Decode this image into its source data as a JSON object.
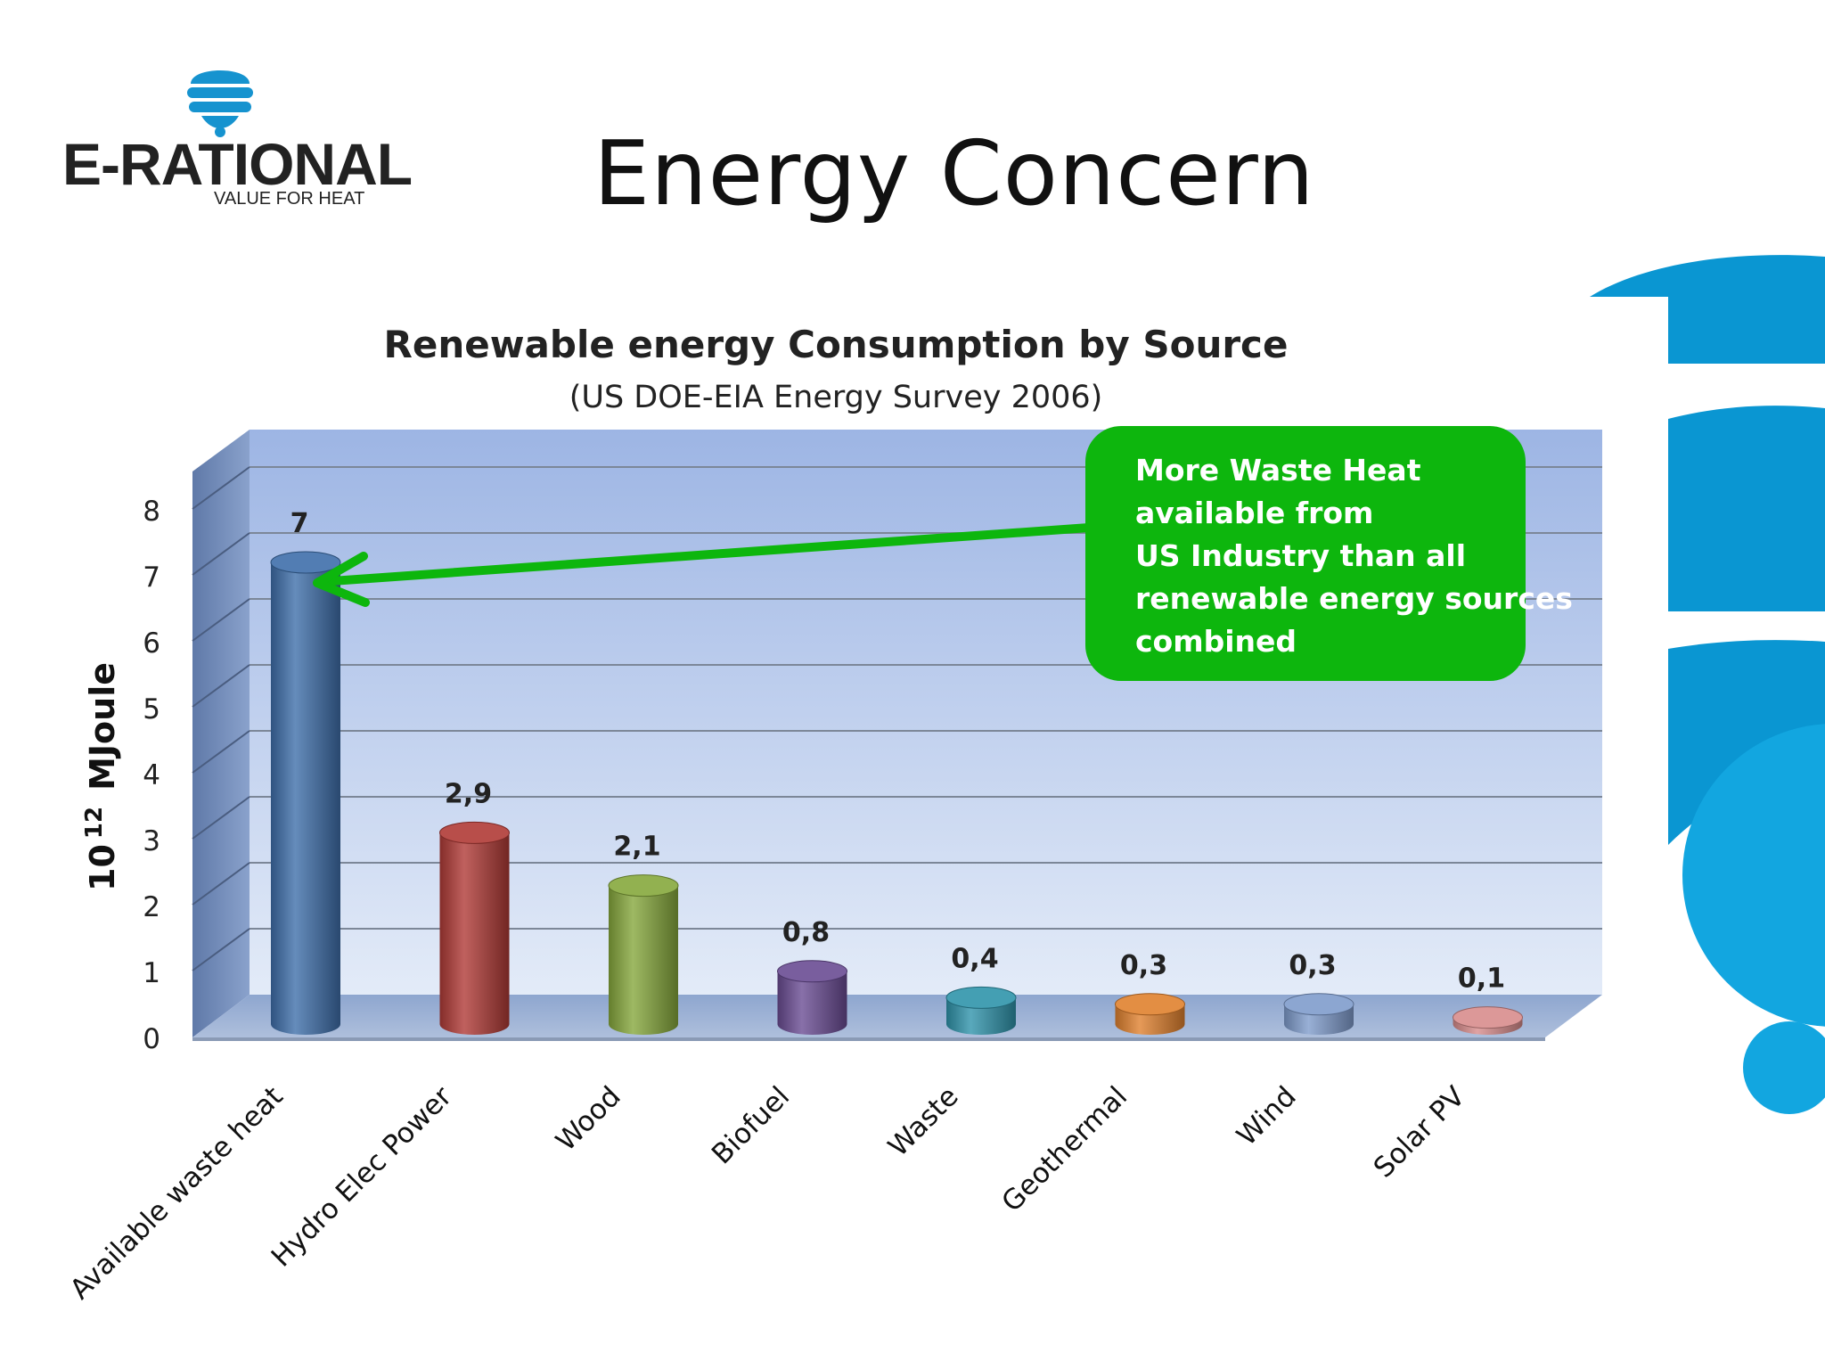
{
  "slide": {
    "title": "Energy Concern",
    "brand": {
      "name": "E-RATIONAL",
      "tagline": "VALUE FOR HEAT"
    },
    "callout": "More Waste Heat\navailable from\nUS Industry than all\nrenewable energy sources\ncombined"
  },
  "colors": {
    "brand_blue": "#0a96d2",
    "callout_green": "#0db60d",
    "arrow_green": "#0db60d"
  },
  "chart_data": {
    "type": "bar",
    "title": "Renewable energy Consumption by Source",
    "subtitle": "(US DOE-EIA  Energy Survey 2006)",
    "ylabel_base": "10",
    "ylabel_exp": "12",
    "ylabel_unit": "MJoule",
    "ylim": [
      0,
      8
    ],
    "yticks": [
      "0",
      "1",
      "2",
      "3",
      "4",
      "5",
      "6",
      "7",
      "8"
    ],
    "grid": true,
    "categories": [
      "Available waste heat",
      "Hydro Elec Power",
      "Wood",
      "Biofuel",
      "Waste",
      "Geothermal",
      "Wind",
      "Solar PV"
    ],
    "values": [
      7,
      2.9,
      2.1,
      0.8,
      0.4,
      0.3,
      0.3,
      0.1
    ],
    "value_labels": [
      "7",
      "2,9",
      "2,1",
      "0,8",
      "0,4",
      "0,3",
      "0,3",
      "0,1"
    ],
    "bar_colors": [
      "#3f6faa",
      "#b03a36",
      "#86a83c",
      "#6a4c93",
      "#2f94ab",
      "#e0812e",
      "#7f9ccc",
      "#d88c8c"
    ]
  }
}
